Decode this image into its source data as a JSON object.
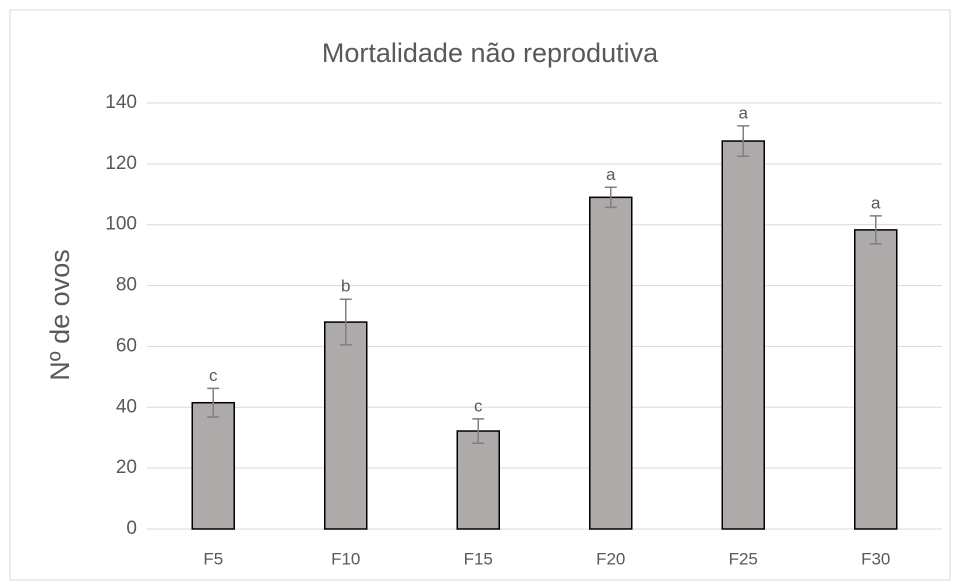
{
  "chart_data": {
    "type": "bar",
    "title": "Mortalidade não reprodutiva",
    "y_label": "Nº de ovos",
    "categories": [
      "F5",
      "F10",
      "F15",
      "F20",
      "F25",
      "F30"
    ],
    "values": [
      41.5,
      68,
      32.2,
      109,
      127.5,
      98.3
    ],
    "errors": [
      4.7,
      7.5,
      4,
      3.3,
      5,
      4.6
    ],
    "annotations": [
      "c",
      "b",
      "c",
      "a",
      "a",
      "a"
    ],
    "color": "#aeaaaa",
    "ylim": [
      0,
      140
    ],
    "yticks": [
      0,
      20,
      40,
      60,
      80,
      100,
      120,
      140
    ],
    "grid": true
  }
}
